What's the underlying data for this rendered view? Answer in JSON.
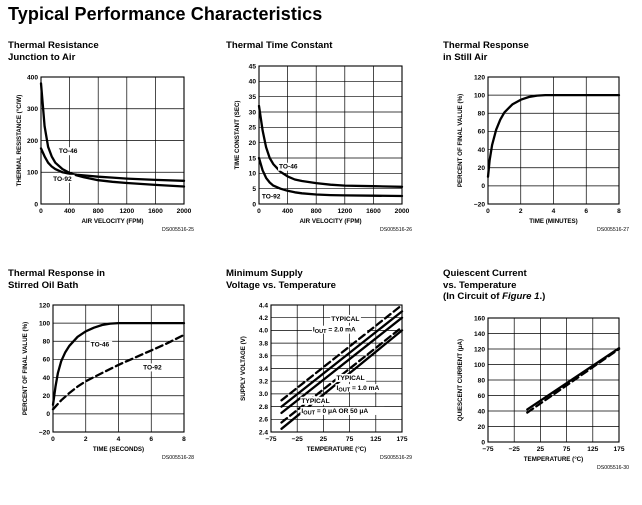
{
  "page": {
    "title": "Typical Performance Characteristics"
  },
  "chart_data": [
    {
      "type": "line",
      "title_lines": [
        "Thermal Resistance",
        "Junction to Air"
      ],
      "xlabel": "AIR VELOCITY (FPM)",
      "ylabel": "THERMAL RESISTANCE (°C/W)",
      "xlim": [
        0,
        2000
      ],
      "ylim": [
        0,
        400
      ],
      "xticks": [
        0,
        400,
        800,
        1200,
        1600,
        2000
      ],
      "yticks": [
        0,
        100,
        200,
        300,
        400
      ],
      "xticklabels": [
        "0",
        "400",
        "800",
        "1200",
        "1600",
        "2000"
      ],
      "yticklabels": [
        "0",
        "100",
        "200",
        "300",
        "400"
      ],
      "grid": true,
      "code": "DS005516-25",
      "series": [
        {
          "name": "TO-46",
          "dash": false,
          "x": [
            0,
            50,
            100,
            150,
            200,
            300,
            400,
            500,
            600,
            800,
            1000,
            1200,
            1600,
            2000
          ],
          "y": [
            380,
            245,
            180,
            150,
            130,
            110,
            98,
            90,
            84,
            75,
            70,
            66,
            60,
            55
          ]
        },
        {
          "name": "TO-92",
          "dash": false,
          "x": [
            0,
            50,
            100,
            150,
            200,
            300,
            400,
            500,
            600,
            800,
            1000,
            1200,
            1600,
            2000
          ],
          "y": [
            175,
            150,
            130,
            118,
            110,
            100,
            95,
            92,
            90,
            86,
            83,
            80,
            76,
            73
          ]
        }
      ],
      "labels": [
        {
          "text": "TO-46",
          "x": 250,
          "y": 160
        },
        {
          "text": "TO-92",
          "x": 170,
          "y": 73
        }
      ]
    },
    {
      "type": "line",
      "title_lines": [
        "Thermal Time Constant"
      ],
      "xlabel": "AIR VELOCITY (FPM)",
      "ylabel": "TIME CONSTANT (SEC)",
      "xlim": [
        0,
        2000
      ],
      "ylim": [
        0,
        45
      ],
      "xticks": [
        0,
        400,
        800,
        1200,
        1600,
        2000
      ],
      "yticks": [
        0,
        5,
        10,
        15,
        20,
        25,
        30,
        35,
        40,
        45
      ],
      "xticklabels": [
        "0",
        "400",
        "800",
        "1200",
        "1600",
        "2000"
      ],
      "yticklabels": [
        "0",
        "5",
        "10",
        "15",
        "20",
        "25",
        "30",
        "35",
        "40",
        "45"
      ],
      "grid": true,
      "code": "DS005516-26",
      "series": [
        {
          "name": "TO-46",
          "dash": false,
          "x": [
            0,
            50,
            100,
            150,
            200,
            300,
            400,
            500,
            600,
            800,
            1000,
            1200,
            1600,
            2000
          ],
          "y": [
            32,
            24,
            18.5,
            15,
            13,
            10.5,
            9,
            8,
            7.5,
            6.8,
            6.3,
            6,
            5.8,
            5.6
          ]
        },
        {
          "name": "TO-92",
          "dash": false,
          "x": [
            0,
            50,
            100,
            150,
            200,
            300,
            400,
            500,
            600,
            800,
            1000,
            1200,
            1600,
            2000
          ],
          "y": [
            15,
            11,
            8.5,
            7,
            6,
            5,
            4.3,
            3.8,
            3.5,
            3.1,
            2.9,
            2.8,
            2.7,
            2.6
          ]
        }
      ],
      "labels": [
        {
          "text": "TO-46",
          "x": 280,
          "y": 11.5
        },
        {
          "text": "TO-92",
          "x": 40,
          "y": 1.8
        }
      ]
    },
    {
      "type": "line",
      "title_lines": [
        "Thermal Response",
        "in Still Air"
      ],
      "xlabel": "TIME (MINUTES)",
      "ylabel": "PERCENT OF FINAL VALUE (%)",
      "xlim": [
        0,
        8
      ],
      "ylim": [
        -20,
        120
      ],
      "xticks": [
        0,
        2,
        4,
        6,
        8
      ],
      "yticks": [
        -20,
        0,
        20,
        40,
        60,
        80,
        100,
        120
      ],
      "xticklabels": [
        "0",
        "2",
        "4",
        "6",
        "8"
      ],
      "yticklabels": [
        "−20",
        "0",
        "20",
        "40",
        "60",
        "80",
        "100",
        "120"
      ],
      "grid": true,
      "code": "DS005516-27",
      "series": [
        {
          "name": "",
          "dash": false,
          "x": [
            0,
            0.1,
            0.25,
            0.5,
            0.75,
            1,
            1.5,
            2,
            2.5,
            3,
            3.5,
            4,
            5,
            6,
            8
          ],
          "y": [
            10,
            28,
            45,
            62,
            73,
            81,
            90,
            95,
            98,
            99.5,
            100,
            100,
            100,
            100,
            100
          ]
        }
      ],
      "labels": []
    },
    {
      "type": "line",
      "title_lines": [
        "Thermal Response in",
        "Stirred Oil Bath"
      ],
      "xlabel": "TIME (SECONDS)",
      "ylabel": "PERCENT OF FINAL VALUE (%)",
      "xlim": [
        0,
        8
      ],
      "ylim": [
        -20,
        120
      ],
      "xticks": [
        0,
        2,
        4,
        6,
        8
      ],
      "yticks": [
        -20,
        0,
        20,
        40,
        60,
        80,
        100,
        120
      ],
      "xticklabels": [
        "0",
        "2",
        "4",
        "6",
        "8"
      ],
      "yticklabels": [
        "−20",
        "0",
        "20",
        "40",
        "60",
        "80",
        "100",
        "120"
      ],
      "grid": true,
      "code": "DS005516-28",
      "series": [
        {
          "name": "TO-46",
          "dash": false,
          "x": [
            0,
            0.15,
            0.3,
            0.5,
            0.75,
            1,
            1.5,
            2,
            2.5,
            3,
            3.5,
            4,
            5,
            6,
            8
          ],
          "y": [
            10,
            30,
            45,
            58,
            68,
            75,
            85,
            91,
            95,
            98,
            99.5,
            100,
            100,
            100,
            100
          ]
        },
        {
          "name": "TO-92",
          "dash": true,
          "x": [
            0,
            0.5,
            1,
            1.5,
            2,
            3,
            4,
            5,
            6,
            7,
            8
          ],
          "y": [
            5,
            15,
            23,
            30,
            36,
            45,
            54,
            62,
            70,
            78,
            87
          ]
        }
      ],
      "labels": [
        {
          "text": "TO-46",
          "x": 2.3,
          "y": 74
        },
        {
          "text": "TO-92",
          "x": 5.5,
          "y": 49
        }
      ]
    },
    {
      "type": "line",
      "title_lines": [
        "Minimum Supply",
        "Voltage vs. Temperature"
      ],
      "xlabel": "TEMPERATURE (°C)",
      "ylabel": "SUPPLY VOLTAGE (V)",
      "xlim": [
        -75,
        175
      ],
      "ylim": [
        2.4,
        4.4
      ],
      "xticks": [
        -75,
        -25,
        25,
        75,
        125,
        175
      ],
      "yticks": [
        2.4,
        2.6,
        2.8,
        3.0,
        3.2,
        3.4,
        3.6,
        3.8,
        4.0,
        4.2,
        4.4
      ],
      "xticklabels": [
        "−75",
        "−25",
        "25",
        "75",
        "125",
        "175"
      ],
      "yticklabels": [
        "2.4",
        "2.6",
        "2.8",
        "3.0",
        "3.2",
        "3.4",
        "3.6",
        "3.8",
        "4.0",
        "4.2",
        "4.4"
      ],
      "grid": true,
      "code": "DS005516-29",
      "series": [
        {
          "name": "",
          "dash": true,
          "x": [
            -55,
            175
          ],
          "y": [
            2.9,
            4.4
          ]
        },
        {
          "name": "",
          "dash": false,
          "x": [
            -55,
            175
          ],
          "y": [
            2.8,
            4.3
          ]
        },
        {
          "name": "",
          "dash": false,
          "x": [
            -55,
            175
          ],
          "y": [
            2.7,
            4.2
          ]
        },
        {
          "name": "",
          "dash": true,
          "x": [
            -55,
            175
          ],
          "y": [
            2.55,
            4.05
          ]
        },
        {
          "name": "",
          "dash": false,
          "x": [
            -55,
            175
          ],
          "y": [
            2.45,
            4.0
          ]
        }
      ],
      "labels": [
        {
          "text": "TYPICAL",
          "x": 40,
          "y": 4.15
        },
        {
          "text": "IOUT = 2.0 mA",
          "x": 5,
          "y": 3.98
        },
        {
          "text": "TYPICAL",
          "x": 50,
          "y": 3.22
        },
        {
          "text": "IOUT = 1.0 mA",
          "x": 50,
          "y": 3.06
        },
        {
          "text": "TYPICAL",
          "x": -17,
          "y": 2.86
        },
        {
          "text": "IOUT = 0 μA OR 50 μA",
          "x": -17,
          "y": 2.7
        }
      ]
    },
    {
      "type": "line",
      "title_lines": [
        "Quiescent Current",
        "vs. Temperature"
      ],
      "title_extra": {
        "prefix": "(In Circuit of ",
        "italic": "Figure 1",
        "suffix": ".)"
      },
      "xlabel": "TEMPERATURE (°C)",
      "ylabel": "QUIESCENT CURRENT (μA)",
      "xlim": [
        -75,
        175
      ],
      "ylim": [
        0,
        160
      ],
      "xticks": [
        -75,
        -25,
        25,
        75,
        125,
        175
      ],
      "yticks": [
        0,
        20,
        40,
        60,
        80,
        100,
        120,
        140,
        160
      ],
      "xticklabels": [
        "−75",
        "−25",
        "25",
        "75",
        "125",
        "175"
      ],
      "yticklabels": [
        "0",
        "20",
        "40",
        "60",
        "80",
        "100",
        "120",
        "140",
        "160"
      ],
      "grid": true,
      "code": "DS005516-30",
      "series": [
        {
          "name": "",
          "dash": true,
          "x": [
            0,
            175
          ],
          "y": [
            38,
            120
          ]
        },
        {
          "name": "",
          "dash": false,
          "x": [
            0,
            175
          ],
          "y": [
            42,
            121
          ]
        }
      ],
      "labels": []
    }
  ]
}
